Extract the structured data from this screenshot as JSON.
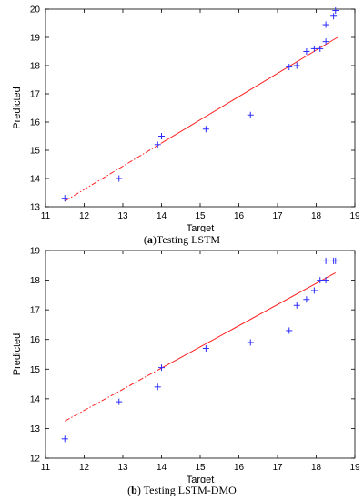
{
  "chart_data": [
    {
      "type": "scatter",
      "caption_label": "a",
      "caption_text": "Testing LSTM",
      "xlabel": "Target",
      "ylabel": "Predicted",
      "xlim": [
        11,
        19
      ],
      "ylim": [
        13,
        20
      ],
      "xticks": [
        "11",
        "12",
        "13",
        "14",
        "15",
        "16",
        "17",
        "18",
        "19"
      ],
      "yticks": [
        "13",
        "14",
        "15",
        "16",
        "17",
        "18",
        "19",
        "20"
      ],
      "grid": false,
      "marker": "+",
      "marker_color": "#2b2bff",
      "fit_color": "#ff2020",
      "points": [
        {
          "x": 11.5,
          "y": 13.3
        },
        {
          "x": 12.9,
          "y": 14.0
        },
        {
          "x": 13.9,
          "y": 15.2
        },
        {
          "x": 14.0,
          "y": 15.5
        },
        {
          "x": 15.15,
          "y": 15.75
        },
        {
          "x": 16.3,
          "y": 16.25
        },
        {
          "x": 17.3,
          "y": 17.95
        },
        {
          "x": 17.5,
          "y": 18.0
        },
        {
          "x": 17.75,
          "y": 18.5
        },
        {
          "x": 17.95,
          "y": 18.6
        },
        {
          "x": 18.1,
          "y": 18.6
        },
        {
          "x": 18.25,
          "y": 18.85
        },
        {
          "x": 18.25,
          "y": 19.45
        },
        {
          "x": 18.45,
          "y": 19.75
        },
        {
          "x": 18.5,
          "y": 19.95
        }
      ],
      "fit": {
        "x0": 11.5,
        "y0": 13.2,
        "x1": 18.55,
        "y1": 19.0,
        "dash_until_x": 14.0
      }
    },
    {
      "type": "scatter",
      "caption_label": "b",
      "caption_text": "Testing LSTM-DMO",
      "xlabel": "Target",
      "ylabel": "Predicted",
      "xlim": [
        11,
        19
      ],
      "ylim": [
        12,
        19
      ],
      "xticks": [
        "11",
        "12",
        "13",
        "14",
        "15",
        "16",
        "17",
        "18",
        "19"
      ],
      "yticks": [
        "12",
        "13",
        "14",
        "15",
        "16",
        "17",
        "18",
        "19"
      ],
      "grid": false,
      "marker": "+",
      "marker_color": "#2b2bff",
      "fit_color": "#ff2020",
      "points": [
        {
          "x": 11.5,
          "y": 12.65
        },
        {
          "x": 12.9,
          "y": 13.9
        },
        {
          "x": 13.9,
          "y": 14.4
        },
        {
          "x": 14.0,
          "y": 15.05
        },
        {
          "x": 15.15,
          "y": 15.7
        },
        {
          "x": 16.3,
          "y": 15.9
        },
        {
          "x": 17.3,
          "y": 16.3
        },
        {
          "x": 17.5,
          "y": 17.15
        },
        {
          "x": 17.75,
          "y": 17.35
        },
        {
          "x": 17.95,
          "y": 17.65
        },
        {
          "x": 18.1,
          "y": 18.0
        },
        {
          "x": 18.25,
          "y": 18.0
        },
        {
          "x": 18.25,
          "y": 18.65
        },
        {
          "x": 18.45,
          "y": 18.65
        },
        {
          "x": 18.5,
          "y": 18.65
        }
      ],
      "fit": {
        "x0": 11.5,
        "y0": 13.25,
        "x1": 18.5,
        "y1": 18.25,
        "dash_until_x": 14.0
      }
    }
  ]
}
